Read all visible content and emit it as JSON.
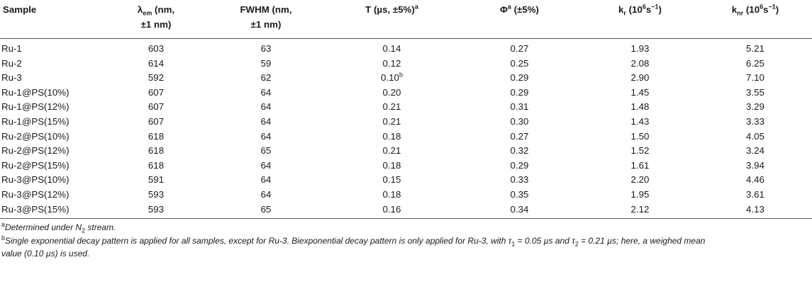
{
  "header": {
    "sample": "Sample",
    "lambda_sym": "λ",
    "lambda_sub": "em",
    "lambda_rest_1": " (nm,",
    "lambda_rest_2": "±1 nm)",
    "fwhm_1": "FWHM (nm,",
    "fwhm_2": "±1 nm)",
    "tau": "T (µs, ±5%)",
    "tau_sup": "a",
    "phi": "Φ",
    "phi_sup": "a",
    "phi_rest": " (±5%)",
    "kr_main": "k",
    "kr_sub": "r",
    "kr_unit_open": " (10",
    "kr_unit_exp": "6",
    "kr_unit_mid": "s",
    "kr_unit_exp2": "−1",
    "kr_unit_close": ")",
    "knr_main": "k",
    "knr_sub": "nr",
    "knr_unit_open": " (10",
    "knr_unit_exp": "6",
    "knr_unit_mid": "s",
    "knr_unit_exp2": "−1",
    "knr_unit_close": ")"
  },
  "rows": [
    {
      "sample": "Ru-1",
      "lambda": "603",
      "fwhm": "63",
      "tau": "0.14",
      "tau_sup": "",
      "phi": "0.27",
      "kr": "1.93",
      "knr": "5.21"
    },
    {
      "sample": "Ru-2",
      "lambda": "614",
      "fwhm": "59",
      "tau": "0.12",
      "tau_sup": "",
      "phi": "0.25",
      "kr": "2.08",
      "knr": "6.25"
    },
    {
      "sample": "Ru-3",
      "lambda": "592",
      "fwhm": "62",
      "tau": "0.10",
      "tau_sup": "b",
      "phi": "0.29",
      "kr": "2.90",
      "knr": "7.10"
    },
    {
      "sample": "Ru-1@PS(10%)",
      "lambda": "607",
      "fwhm": "64",
      "tau": "0.20",
      "tau_sup": "",
      "phi": "0.29",
      "kr": "1.45",
      "knr": "3.55"
    },
    {
      "sample": "Ru-1@PS(12%)",
      "lambda": "607",
      "fwhm": "64",
      "tau": "0.21",
      "tau_sup": "",
      "phi": "0.31",
      "kr": "1.48",
      "knr": "3.29"
    },
    {
      "sample": "Ru-1@PS(15%)",
      "lambda": "607",
      "fwhm": "64",
      "tau": "0.21",
      "tau_sup": "",
      "phi": "0.30",
      "kr": "1.43",
      "knr": "3.33"
    },
    {
      "sample": "Ru-2@PS(10%)",
      "lambda": "618",
      "fwhm": "64",
      "tau": "0.18",
      "tau_sup": "",
      "phi": "0.27",
      "kr": "1.50",
      "knr": "4.05"
    },
    {
      "sample": "Ru-2@PS(12%)",
      "lambda": "618",
      "fwhm": "65",
      "tau": "0.21",
      "tau_sup": "",
      "phi": "0.32",
      "kr": "1.52",
      "knr": "3.24"
    },
    {
      "sample": "Ru-2@PS(15%)",
      "lambda": "618",
      "fwhm": "64",
      "tau": "0.18",
      "tau_sup": "",
      "phi": "0.29",
      "kr": "1.61",
      "knr": "3.94"
    },
    {
      "sample": "Ru-3@PS(10%)",
      "lambda": "591",
      "fwhm": "64",
      "tau": "0.15",
      "tau_sup": "",
      "phi": "0.33",
      "kr": "2.20",
      "knr": "4.46"
    },
    {
      "sample": "Ru-3@PS(12%)",
      "lambda": "593",
      "fwhm": "64",
      "tau": "0.18",
      "tau_sup": "",
      "phi": "0.35",
      "kr": "1.95",
      "knr": "3.61"
    },
    {
      "sample": "Ru-3@PS(15%)",
      "lambda": "593",
      "fwhm": "65",
      "tau": "0.16",
      "tau_sup": "",
      "phi": "0.34",
      "kr": "2.12",
      "knr": "4.13"
    }
  ],
  "footnotes": {
    "a_mark": "a",
    "a_text_1": "Determined under N",
    "a_sub": "2",
    "a_text_2": " stream.",
    "b_mark": "b",
    "b_text_1": "Single exponential decay pattern is applied for all samples, except for Ru-3. Biexponential decay pattern is only applied for Ru-3, with τ",
    "b_sub1": "1",
    "b_text_2": " = 0.05 µs and τ",
    "b_sub2": "2",
    "b_text_3": " = 0.21 µs; here, a weighed mean",
    "b_text_4": "value (0.10 µs) is used."
  }
}
